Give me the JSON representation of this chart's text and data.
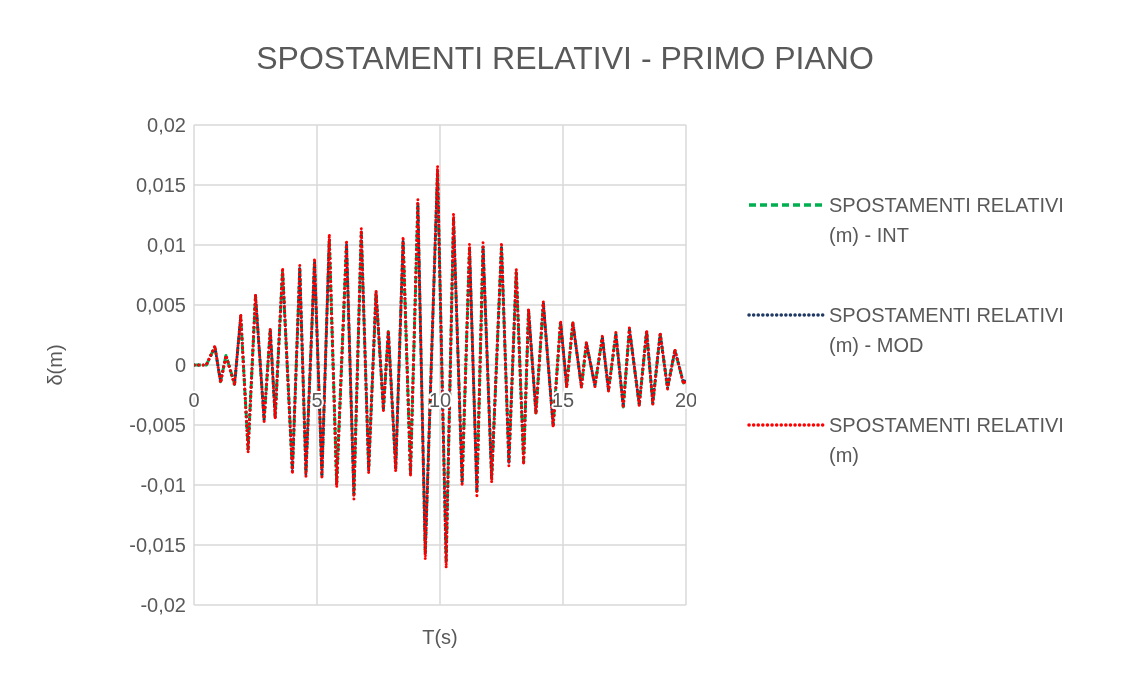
{
  "chart_data": {
    "type": "line",
    "title": "SPOSTAMENTI RELATIVI - PRIMO PIANO",
    "xlabel": "T(s)",
    "ylabel": "δ(m)",
    "x": [
      0,
      0.5,
      0.85,
      1.08,
      1.3,
      1.65,
      1.9,
      2.2,
      2.5,
      2.85,
      3.1,
      3.3,
      3.6,
      4.0,
      4.3,
      4.55,
      4.9,
      5.2,
      5.5,
      5.8,
      6.2,
      6.5,
      6.8,
      7.1,
      7.4,
      7.7,
      7.9,
      8.2,
      8.5,
      8.8,
      9.1,
      9.4,
      9.9,
      10.25,
      10.55,
      10.9,
      11.2,
      11.5,
      11.75,
      12.1,
      12.5,
      12.8,
      13.1,
      13.4,
      13.6,
      13.9,
      14.2,
      14.6,
      14.9,
      15.15,
      15.4,
      15.75,
      15.95,
      16.3,
      16.6,
      16.85,
      17.15,
      17.45,
      17.7,
      18.1,
      18.4,
      18.65,
      18.95,
      19.25,
      19.55,
      19.9,
      20
    ],
    "series": [
      {
        "name": "SPOSTAMENTI RELATIVI (m) - INT",
        "color": "#00b050",
        "line_style": "dashed",
        "values": [
          0,
          0,
          0.0015,
          -0.0014,
          0.0008,
          -0.0016,
          0.004,
          -0.007,
          0.0057,
          -0.0045,
          0.0029,
          -0.0043,
          0.0078,
          -0.0088,
          0.008,
          -0.009,
          0.0086,
          -0.0092,
          0.0105,
          -0.0099,
          0.01,
          -0.0108,
          0.011,
          -0.0087,
          0.006,
          -0.0037,
          0.0028,
          -0.0086,
          0.0103,
          -0.009,
          0.0133,
          -0.0156,
          0.016,
          -0.0163,
          0.0121,
          -0.0097,
          0.0097,
          -0.0105,
          0.0098,
          -0.0094,
          0.0098,
          -0.0081,
          0.0077,
          -0.008,
          0.0045,
          -0.004,
          0.0051,
          -0.005,
          0.0036,
          -0.0018,
          0.0035,
          -0.0018,
          0.0018,
          -0.0017,
          0.0023,
          -0.0021,
          0.0026,
          -0.0035,
          0.003,
          -0.0033,
          0.0028,
          -0.0032,
          0.0026,
          -0.0019,
          0.0012,
          -0.0015,
          -0.0012
        ]
      },
      {
        "name": "SPOSTAMENTI RELATIVI (m) - MOD",
        "color": "#1f3864",
        "line_style": "dotted",
        "values": [
          0,
          0,
          0.0015,
          -0.0014,
          0.0008,
          -0.0016,
          0.0041,
          -0.0071,
          0.0058,
          -0.0046,
          0.0029,
          -0.0044,
          0.0079,
          -0.0089,
          0.0081,
          -0.0091,
          0.0087,
          -0.0093,
          0.0106,
          -0.01,
          0.0101,
          -0.0109,
          0.0111,
          -0.0088,
          0.0061,
          -0.0037,
          0.0028,
          -0.0087,
          0.0104,
          -0.0091,
          0.0135,
          -0.0158,
          0.0162,
          -0.0165,
          0.0123,
          -0.0098,
          0.0098,
          -0.0106,
          0.0099,
          -0.0095,
          0.0099,
          -0.0082,
          0.0078,
          -0.0081,
          0.0046,
          -0.004,
          0.0052,
          -0.0051,
          0.0036,
          -0.0018,
          0.0035,
          -0.0018,
          0.0018,
          -0.0017,
          0.0023,
          -0.0021,
          0.0026,
          -0.0035,
          0.003,
          -0.0033,
          0.0028,
          -0.0032,
          0.0026,
          -0.0019,
          0.0012,
          -0.0015,
          -0.0012
        ]
      },
      {
        "name": "SPOSTAMENTI RELATIVI (m)",
        "color": "#ff0000",
        "line_style": "dotted",
        "values": [
          0,
          0,
          0.0016,
          -0.0015,
          0.0008,
          -0.0017,
          0.0042,
          -0.0073,
          0.0059,
          -0.0047,
          0.003,
          -0.0045,
          0.0081,
          -0.0091,
          0.0083,
          -0.0093,
          0.0089,
          -0.0095,
          0.0109,
          -0.0102,
          0.0104,
          -0.0112,
          0.0114,
          -0.009,
          0.0062,
          -0.0038,
          0.0029,
          -0.0089,
          0.0107,
          -0.0093,
          0.0138,
          -0.0162,
          0.0166,
          -0.0169,
          0.0126,
          -0.0101,
          0.0101,
          -0.0109,
          0.0102,
          -0.0098,
          0.0102,
          -0.0084,
          0.008,
          -0.0083,
          0.0047,
          -0.0041,
          0.0053,
          -0.0052,
          0.0037,
          -0.0019,
          0.0036,
          -0.0019,
          0.0019,
          -0.0018,
          0.0024,
          -0.0022,
          0.0027,
          -0.0036,
          0.0031,
          -0.0034,
          0.0029,
          -0.0033,
          0.0027,
          -0.002,
          0.0013,
          -0.0016,
          -0.0012
        ]
      }
    ],
    "xlim": [
      0,
      20
    ],
    "xticks": [
      0,
      5,
      10,
      15,
      20
    ],
    "ylim": [
      -0.02,
      0.02
    ],
    "yticks": [
      {
        "value": -0.02,
        "label": "-0,02"
      },
      {
        "value": -0.015,
        "label": "-0,015"
      },
      {
        "value": -0.01,
        "label": "-0,01"
      },
      {
        "value": -0.005,
        "label": "-0,005"
      },
      {
        "value": 0,
        "label": "0"
      },
      {
        "value": 0.005,
        "label": "0,005"
      },
      {
        "value": 0.01,
        "label": "0,01"
      },
      {
        "value": 0.015,
        "label": "0,015"
      },
      {
        "value": 0.02,
        "label": "0,02"
      }
    ],
    "grid": true,
    "legend": "right",
    "marker": "none"
  }
}
